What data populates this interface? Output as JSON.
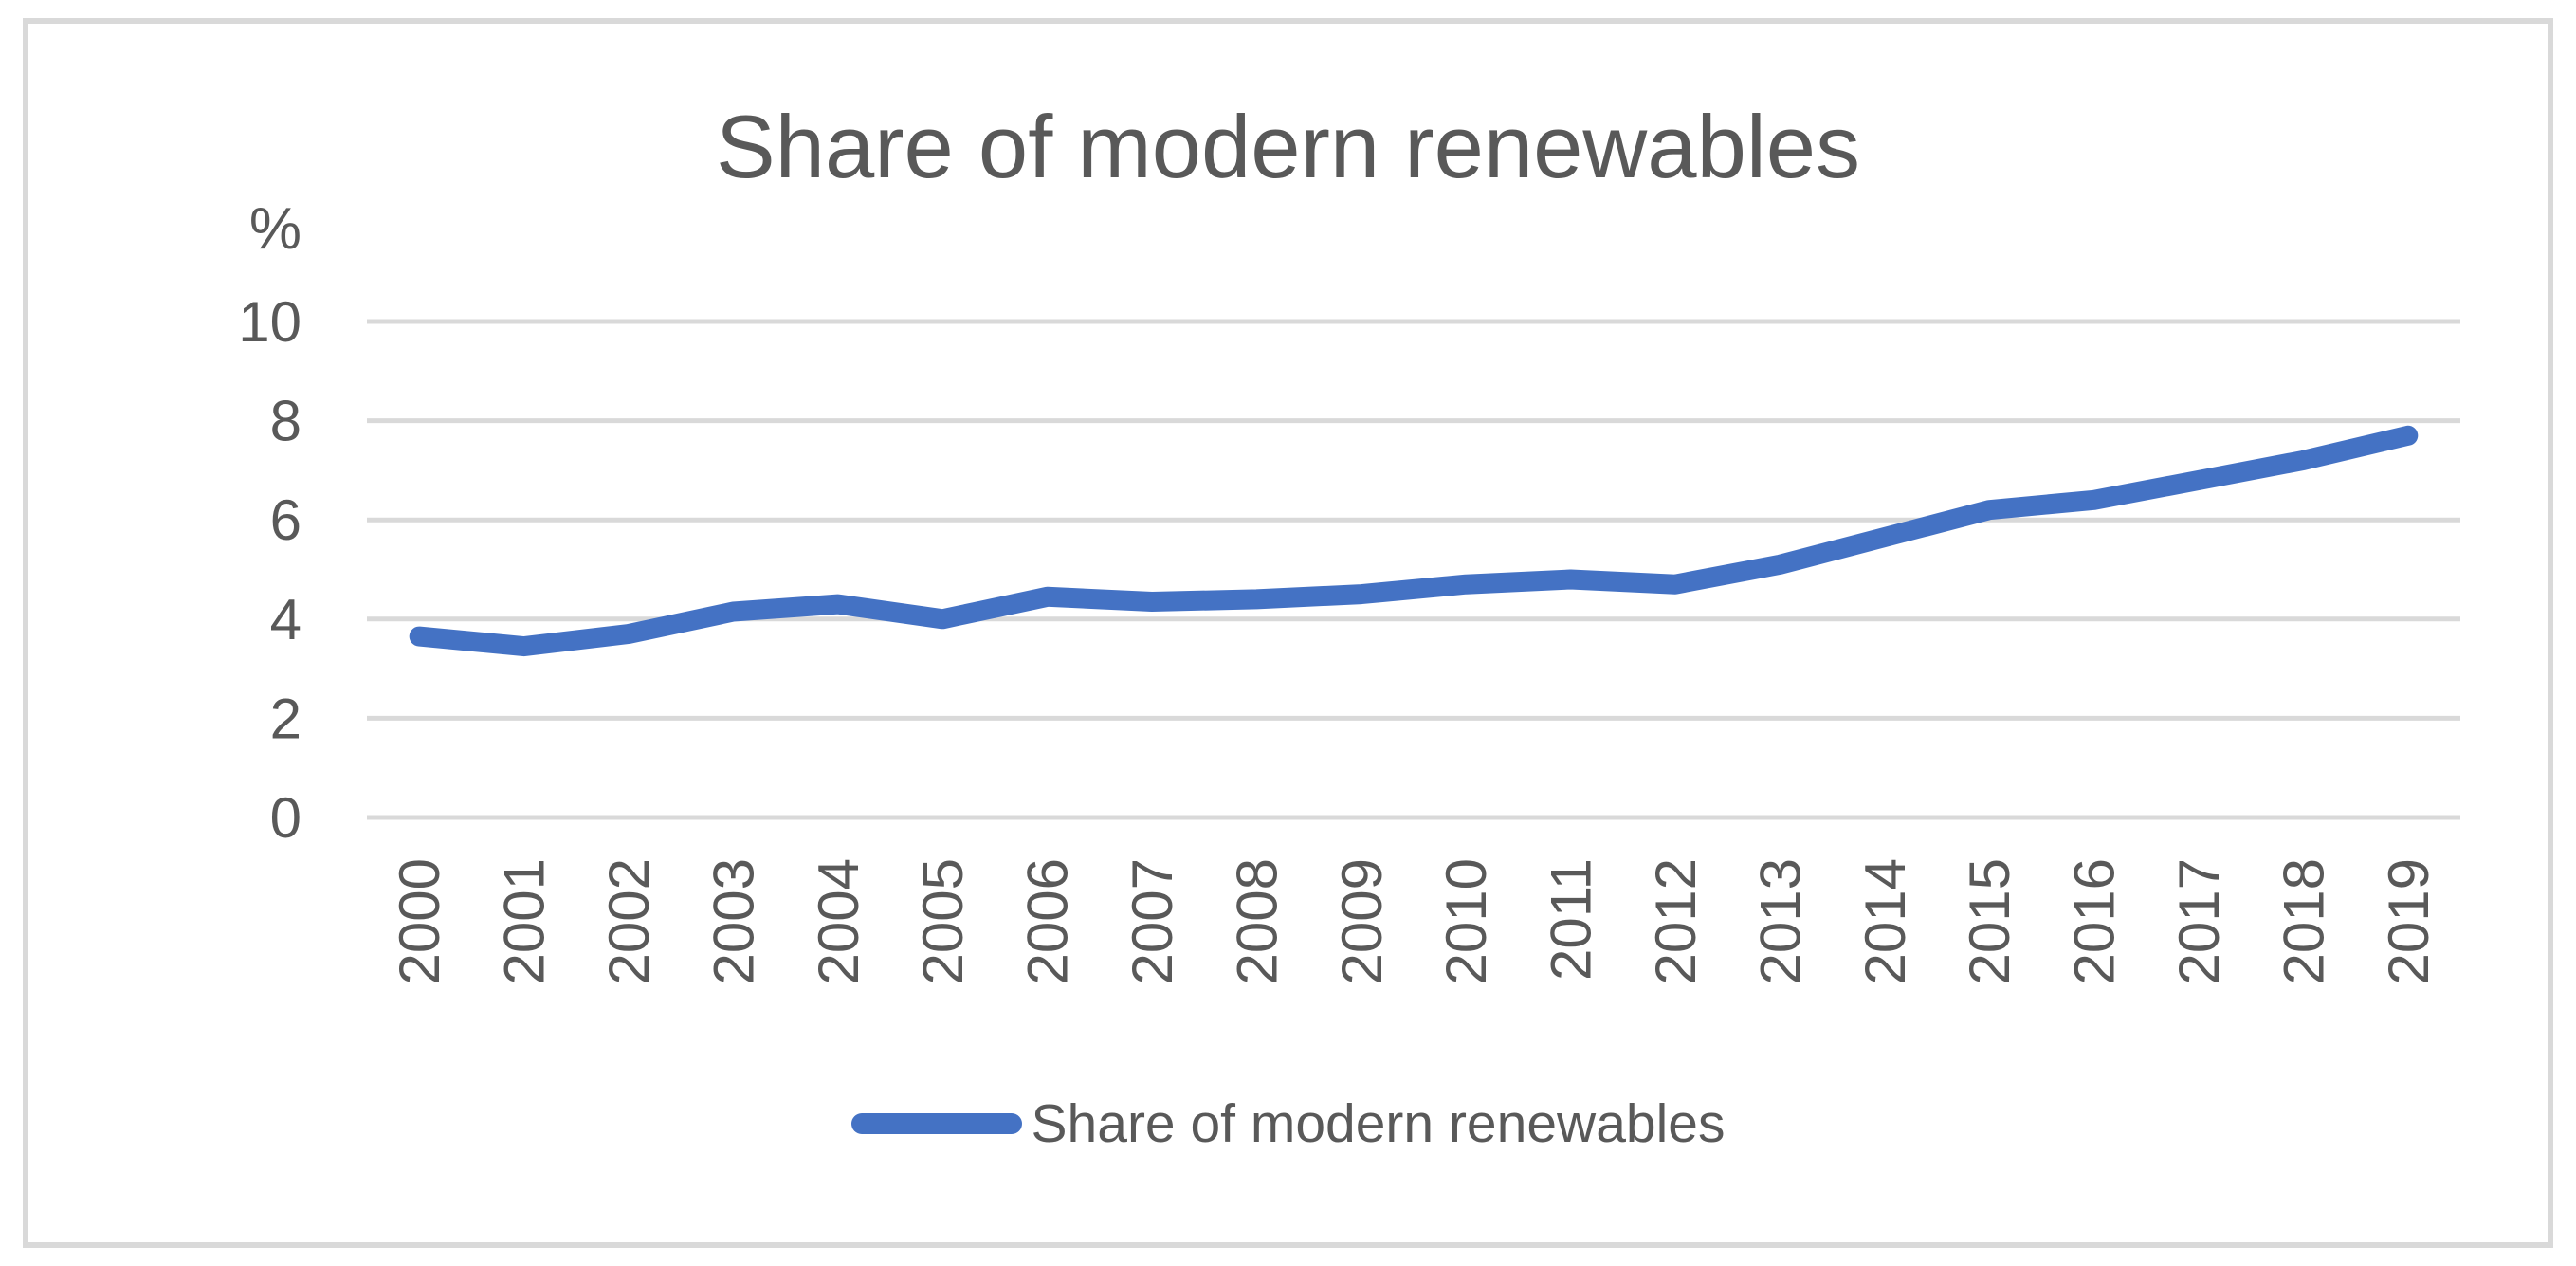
{
  "chart_data": {
    "type": "line",
    "title": "Share of modern renewables",
    "y_axis": {
      "unit_label": "%",
      "ticks": [
        0,
        2,
        4,
        6,
        8,
        10
      ],
      "min": 0,
      "max": 10,
      "gridlines": true
    },
    "x_axis": {
      "categories": [
        "2000",
        "2001",
        "2002",
        "2003",
        "2004",
        "2005",
        "2006",
        "2007",
        "2008",
        "2009",
        "2010",
        "2011",
        "2012",
        "2013",
        "2014",
        "2015",
        "2016",
        "2017",
        "2018",
        "2019"
      ],
      "label_rotation_degrees": -90
    },
    "series": [
      {
        "name": "Share of modern renewables",
        "color": "#4472C4",
        "values": [
          3.65,
          3.45,
          3.7,
          4.15,
          4.3,
          4.0,
          4.45,
          4.35,
          4.4,
          4.5,
          4.7,
          4.8,
          4.7,
          5.1,
          5.65,
          6.2,
          6.4,
          6.8,
          7.2,
          7.7
        ]
      }
    ],
    "legend": {
      "position": "bottom",
      "entries": [
        {
          "label": "Share of modern renewables",
          "color": "#4472C4"
        }
      ]
    }
  },
  "colors": {
    "line": "#4472C4",
    "text": "#595959",
    "gridline": "#D9D9D9",
    "frame_border": "#D9D9D9",
    "background": "#FFFFFF"
  }
}
